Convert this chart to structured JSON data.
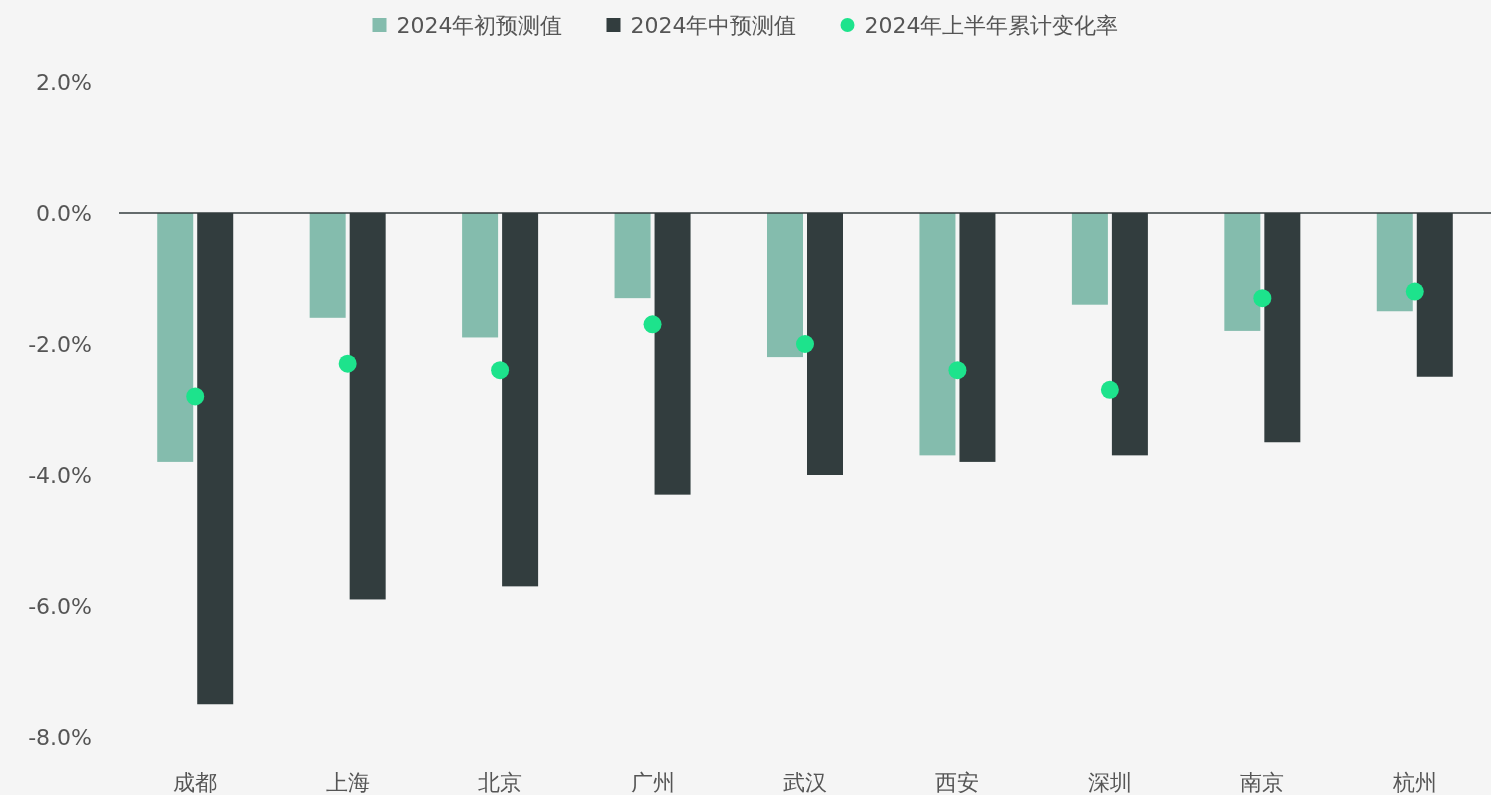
{
  "chart_data": {
    "type": "bar",
    "categories": [
      "成都",
      "上海",
      "北京",
      "广州",
      "武汉",
      "西安",
      "深圳",
      "南京",
      "杭州"
    ],
    "series": [
      {
        "name": "2024年初预测值",
        "color": "#84bcad",
        "values": [
          -3.8,
          -1.6,
          -1.9,
          -1.3,
          -2.2,
          -3.7,
          -1.4,
          -1.8,
          -1.5
        ]
      },
      {
        "name": "2024年中预测值",
        "color": "#323d3e",
        "values": [
          -7.5,
          -5.9,
          -5.7,
          -4.3,
          -4.0,
          -3.8,
          -3.7,
          -3.5,
          -2.5
        ]
      },
      {
        "name": "2024年上半年累计变化率",
        "color": "#1de38c",
        "type": "scatter",
        "marker": "circle",
        "values": [
          -2.8,
          -2.3,
          -2.4,
          -1.7,
          -2.0,
          -2.4,
          -2.7,
          -1.3,
          -1.2
        ]
      }
    ],
    "ylim": [
      -8,
      2
    ],
    "yticks": [
      {
        "value": 2,
        "label": "2.0%"
      },
      {
        "value": 0,
        "label": "0.0%"
      },
      {
        "value": -2,
        "label": "-2.0%"
      },
      {
        "value": -4,
        "label": "-4.0%"
      },
      {
        "value": -6,
        "label": "-6.0%"
      },
      {
        "value": -8,
        "label": "-8.0%"
      }
    ],
    "ref_lines": [
      {
        "axis": "y",
        "value": 0,
        "color": "#333d3e"
      }
    ],
    "grid": false,
    "legend": "top"
  }
}
